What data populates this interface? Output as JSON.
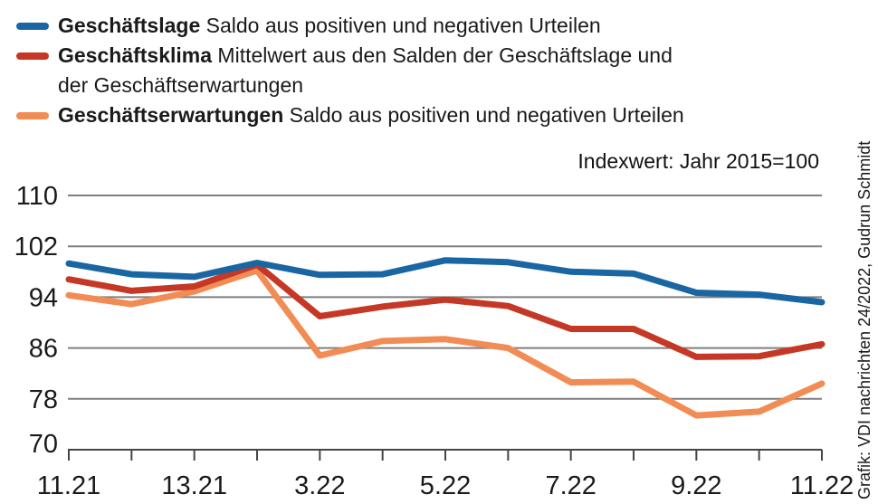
{
  "legend": {
    "items": [
      {
        "term": "Geschäftslage",
        "desc": "Saldo aus positiven und negativen Urteilen",
        "color": "#1a66a3"
      },
      {
        "term": "Geschäftsklima",
        "desc": "Mittelwert aus den Salden der Geschäftslage und",
        "desc2": "der Geschäftserwartungen",
        "color": "#c53826"
      },
      {
        "term": "Geschäftserwartungen",
        "desc": "Saldo aus positiven und negativen Urteilen",
        "color": "#f28c55"
      }
    ]
  },
  "annotation": "Indexwert: Jahr 2015=100",
  "credit": "Grafik: VDI nachrichten 24/2022, Gudrun Schmidt",
  "chart_data": {
    "type": "line",
    "title": "",
    "index_note": "Indexwert: Jahr 2015=100",
    "n_points": 13,
    "x_tick_labels": [
      "11.21",
      "13.21",
      "3.22",
      "5.22",
      "7.22",
      "9.22",
      "11.22"
    ],
    "x_tick_indices": [
      0,
      2,
      4,
      6,
      8,
      10,
      12
    ],
    "ylim": [
      70,
      110
    ],
    "yticks": [
      70,
      78,
      86,
      94,
      102,
      110
    ],
    "grid": "horizontal",
    "legend_position": "top-left",
    "series": [
      {
        "name": "Geschäftslage",
        "color": "#1a66a3",
        "values": [
          99.3,
          97.6,
          97.2,
          99.4,
          97.5,
          97.6,
          99.8,
          99.5,
          98.0,
          97.7,
          94.7,
          94.4,
          93.2
        ]
      },
      {
        "name": "Geschäftsklima",
        "color": "#c53826",
        "values": [
          96.8,
          95.0,
          95.7,
          99.1,
          91.0,
          92.5,
          93.6,
          92.6,
          89.0,
          89.0,
          84.6,
          84.7,
          86.6
        ]
      },
      {
        "name": "Geschäftserwartungen",
        "color": "#f28c55",
        "values": [
          94.3,
          92.9,
          94.9,
          98.2,
          84.8,
          87.1,
          87.4,
          86.0,
          80.6,
          80.7,
          75.4,
          76.0,
          80.4
        ]
      }
    ]
  }
}
